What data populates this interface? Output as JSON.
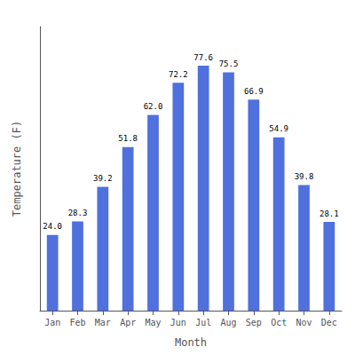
{
  "chart_data": {
    "type": "bar",
    "categories": [
      "Jan",
      "Feb",
      "Mar",
      "Apr",
      "May",
      "Jun",
      "Jul",
      "Aug",
      "Sep",
      "Oct",
      "Nov",
      "Dec"
    ],
    "values": [
      24.0,
      28.3,
      39.2,
      51.8,
      62.0,
      72.2,
      77.6,
      75.5,
      66.9,
      54.9,
      39.8,
      28.1
    ],
    "value_labels": [
      "24.0",
      "28.3",
      "39.2",
      "51.8",
      "62.0",
      "72.2",
      "77.6",
      "75.5",
      "66.9",
      "54.9",
      "39.8",
      "28.1"
    ],
    "data_labels": true,
    "xlabel": "Month",
    "ylabel": "Temperature (F)",
    "ylim": [
      0,
      90
    ],
    "tick_labels": "x",
    "grid": false
  }
}
